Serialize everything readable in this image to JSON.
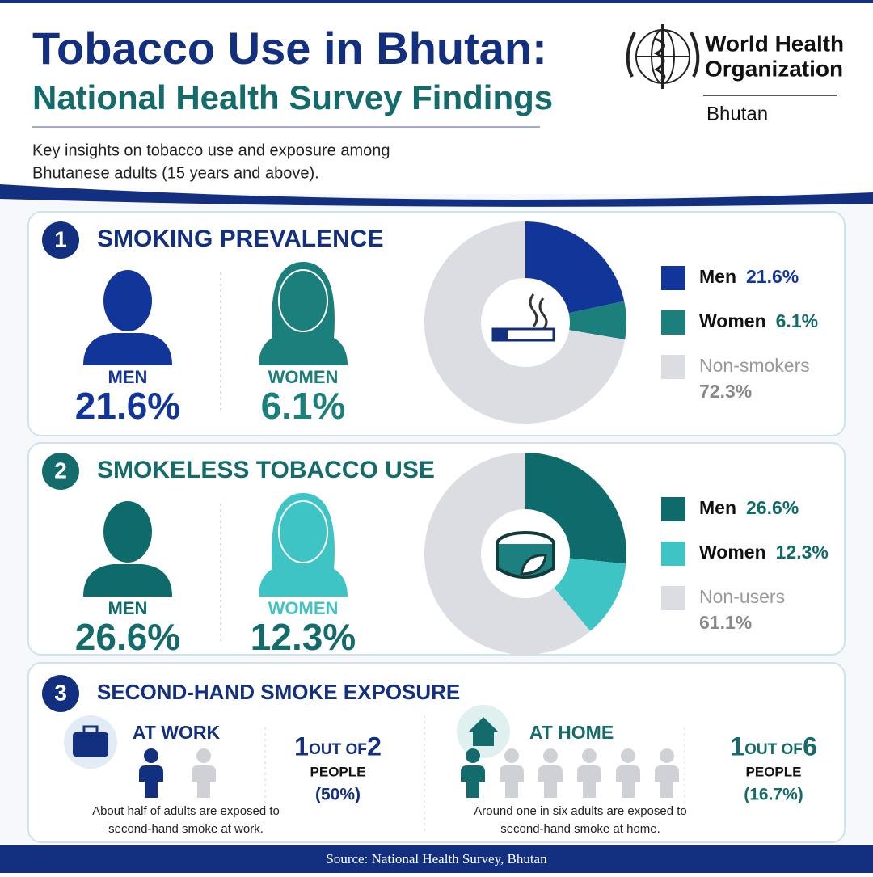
{
  "header": {
    "title": "Tobacco Use in Bhutan:",
    "subtitle": "National Health Survey Findings",
    "intro": [
      "Key insights on tobacco use and exposure among",
      "Bhutanese adults (15 years and above)."
    ],
    "org": [
      "World Health",
      "Organization"
    ],
    "country": "Bhutan"
  },
  "chart_data": [
    {
      "type": "pie",
      "categories": [
        "Men",
        "Women",
        "Non-smokers"
      ],
      "values": [
        21.6,
        6.1,
        72.3
      ],
      "value_labels": [
        "21.6%",
        "6.1%",
        "72.3%"
      ],
      "colors": [
        "#12359a",
        "#1b7f7c",
        "#dcdde2"
      ]
    },
    {
      "type": "pie",
      "categories": [
        "Men",
        "Women",
        "Non-users"
      ],
      "values": [
        26.6,
        12.3,
        61.1
      ],
      "value_labels": [
        "26.6%",
        "12.3%",
        "61.1%"
      ],
      "colors": [
        "#0f6b6b",
        "#3ec4c4",
        "#dcdde2"
      ]
    }
  ],
  "sections": [
    {
      "number": "1",
      "title": "SMOKING PREVALENCE",
      "people": [
        "MEN",
        "WOMEN"
      ]
    },
    {
      "number": "2",
      "title": "SMOKELESS TOBACCO USE",
      "people": [
        "MEN",
        "WOMEN"
      ]
    },
    {
      "number": "3",
      "title": "SECOND-HAND SMOKE EXPOSURE"
    }
  ],
  "exposure": [
    {
      "place": "AT WORK",
      "count": 1,
      "out_of": "OUT OF",
      "of": 2,
      "people": "PEOPLE",
      "percent": "(50%)",
      "note": [
        "About half of adults are exposed to",
        "second-hand smoke at work."
      ]
    },
    {
      "place": "AT HOME",
      "count": 1,
      "out_of": "OUT OF",
      "of": 6,
      "people": "PEOPLE",
      "percent": "(16.7%)",
      "note": [
        "Around one in six adults are exposed to",
        "second-hand smoke at home."
      ]
    }
  ],
  "footer": "Source: National Health Survey, Bhutan"
}
